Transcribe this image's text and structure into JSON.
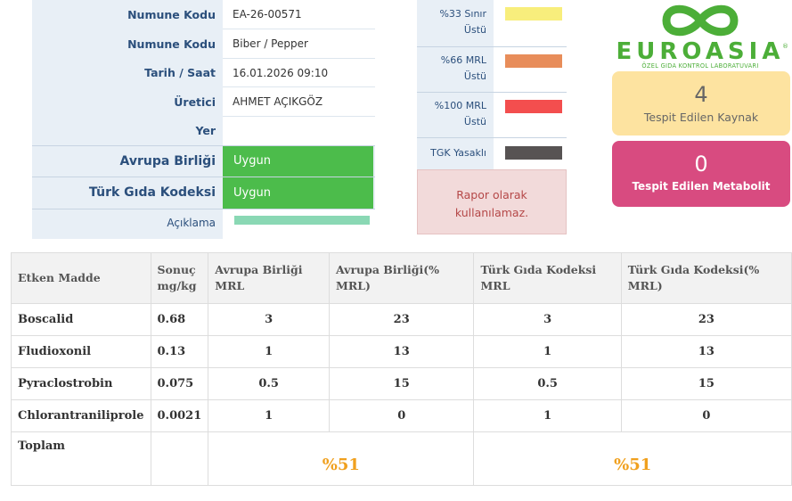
{
  "sample_info": {
    "sample_code_label_1": "Numune Kodu",
    "sample_code_value": "EA-26-00571",
    "sample_code_label_2": "Numune Kodu",
    "sample_name_value": "Biber / Pepper",
    "datetime_label": "Tarih / Saat",
    "datetime_value": "16.01.2026 09:10",
    "producer_label": "Üretici",
    "producer_value": "AHMET AÇIKGÖZ",
    "location_label": "Yer",
    "location_value": "",
    "eu_label": "Avrupa Birliği",
    "eu_status": "Uygun",
    "tgk_label": "Türk Gıda Kodeksi",
    "tgk_status": "Uygun",
    "description_label": "Açıklama"
  },
  "legend": {
    "items": [
      {
        "label_line1": "%33 Sınır",
        "label_line2": "Üstü",
        "color": "#f8ee7c"
      },
      {
        "label_line1": "%66 MRL",
        "label_line2": "Üstü",
        "color": "#e88d5a"
      },
      {
        "label_line1": "%100 MRL",
        "label_line2": "Üstü",
        "color": "#f34e4e"
      },
      {
        "label_line1": "TGK Yasaklı",
        "label_line2": "",
        "color": "#575353"
      }
    ],
    "warning_line1": "Rapor olarak",
    "warning_line2": "kullanılamaz."
  },
  "logo": {
    "wordmark": "EUROASIA",
    "registered": "®",
    "subtitle": "ÖZEL GIDA KONTROL LABORATUVARI",
    "brand_color": "#4cae38"
  },
  "stats": {
    "sources_count": "4",
    "sources_label": "Tespit Edilen Kaynak",
    "metabolites_count": "0",
    "metabolites_label": "Tespit Edilen Metabolit"
  },
  "results": {
    "headers": {
      "active": "Etken Madde",
      "result_1": "Sonuç",
      "result_2": "mg/kg",
      "eu_mrl_1": "Avrupa Birliği",
      "eu_mrl_2": "MRL",
      "eu_pct_1": "Avrupa Birliği(%",
      "eu_pct_2": "MRL)",
      "tgk_mrl_1": "Türk Gıda Kodeksi",
      "tgk_mrl_2": "MRL",
      "tgk_pct_1": "Türk Gıda Kodeksi(%",
      "tgk_pct_2": "MRL)"
    },
    "rows": [
      {
        "name": "Boscalid",
        "result": "0.68",
        "eu_mrl": "3",
        "eu_pct": "23",
        "tgk_mrl": "3",
        "tgk_pct": "23"
      },
      {
        "name": "Fludioxonil",
        "result": "0.13",
        "eu_mrl": "1",
        "eu_pct": "13",
        "tgk_mrl": "1",
        "tgk_pct": "13"
      },
      {
        "name": "Pyraclostrobin",
        "result": "0.075",
        "eu_mrl": "0.5",
        "eu_pct": "15",
        "tgk_mrl": "0.5",
        "tgk_pct": "15"
      },
      {
        "name": "Chlorantraniliprole",
        "result": "0.0021",
        "eu_mrl": "1",
        "eu_pct": "0",
        "tgk_mrl": "1",
        "tgk_pct": "0"
      }
    ],
    "total_label": "Toplam",
    "eu_total": "%51",
    "tgk_total": "%51"
  }
}
